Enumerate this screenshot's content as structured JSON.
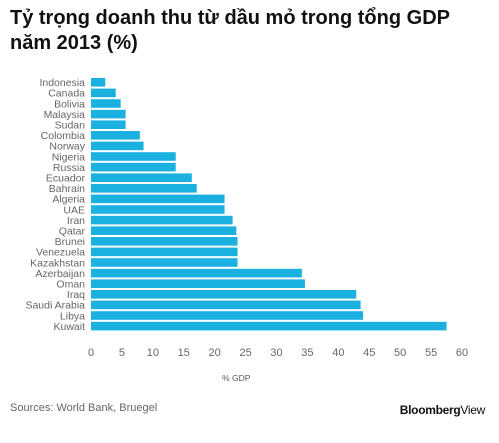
{
  "chart_data": {
    "type": "bar",
    "orientation": "horizontal",
    "title_line1": "Tỷ trọng doanh thu từ dầu mỏ trong tổng GDP",
    "title_line2": "năm 2013 (%)",
    "xlabel": "% GDP",
    "ylabel": "",
    "xlim": [
      0,
      60
    ],
    "xticks": [
      "0",
      "5",
      "10",
      "15",
      "20",
      "25",
      "30",
      "35",
      "40",
      "45",
      "50",
      "55",
      "60"
    ],
    "grid": false,
    "bar_color": "#1ab1e0",
    "categories": [
      "Indonesia",
      "Canada",
      "Bolivia",
      "Malaysia",
      "Sudan",
      "Colombia",
      "Norway",
      "Nigeria",
      "Russia",
      "Ecuador",
      "Bahrain",
      "Algeria",
      "UAE",
      "Iran",
      "Qatar",
      "Brunei",
      "Venezuela",
      "Kazakhstan",
      "Azerbaijan",
      "Oman",
      "Iraq",
      "Saudi Arabia",
      "Libya",
      "Kuwait"
    ],
    "values": [
      2.3,
      4.0,
      4.8,
      5.6,
      5.6,
      7.9,
      8.5,
      13.7,
      13.7,
      16.3,
      17.1,
      21.6,
      21.6,
      22.9,
      23.5,
      23.7,
      23.7,
      23.7,
      34.1,
      34.6,
      42.9,
      43.6,
      44.0,
      57.5
    ]
  },
  "footer": {
    "source": "Sources: World Bank, Bruegel",
    "brand_bold": "Bloomberg",
    "brand_regular": "View"
  }
}
